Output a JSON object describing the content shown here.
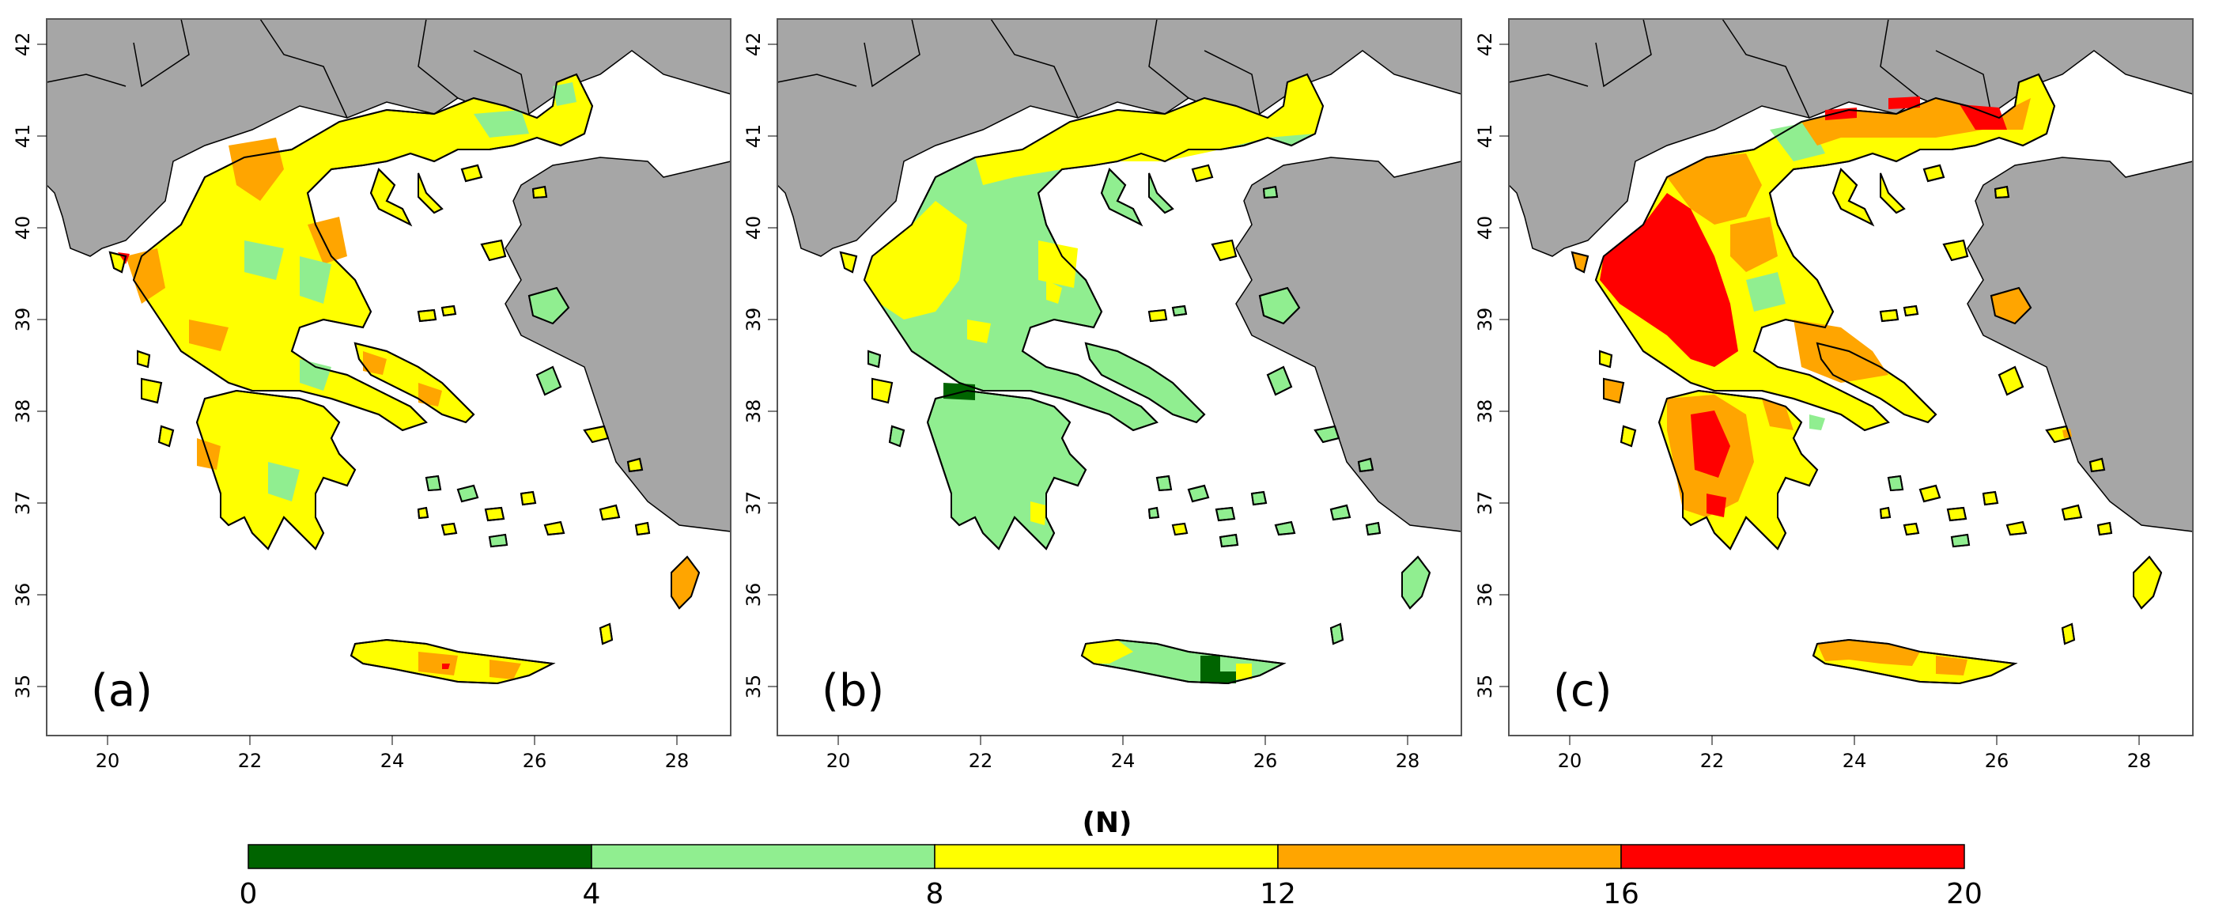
{
  "panels": [
    {
      "label": "(a)",
      "scheme": "a"
    },
    {
      "label": "(b)",
      "scheme": "b"
    },
    {
      "label": "(c)",
      "scheme": "c"
    }
  ],
  "lon_ticks": [
    "20",
    "22",
    "24",
    "26",
    "28"
  ],
  "lat_ticks": [
    "42",
    "41",
    "40",
    "39",
    "38",
    "37",
    "36",
    "35"
  ],
  "colorbar": {
    "title": "(N)",
    "ticks": [
      "0",
      "4",
      "8",
      "12",
      "16",
      "20"
    ],
    "bins": [
      {
        "range": [
          0,
          4
        ],
        "color": "#006400"
      },
      {
        "range": [
          4,
          8
        ],
        "color": "#90ee90"
      },
      {
        "range": [
          8,
          12
        ],
        "color": "#ffff00"
      },
      {
        "range": [
          12,
          16
        ],
        "color": "#ffa500"
      },
      {
        "range": [
          16,
          20
        ],
        "color": "#ff0000"
      }
    ]
  },
  "colors": {
    "land_neighbors": "#a6a6a6",
    "sea": "#ffffff",
    "coast": "#000000"
  }
}
